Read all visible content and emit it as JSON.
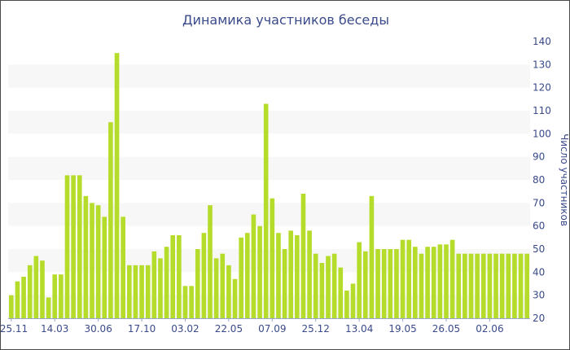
{
  "chart_data": {
    "type": "bar",
    "title": "Динамика участников беседы",
    "ylabel": "Число участников",
    "xlabel": "",
    "ylim": [
      20,
      140
    ],
    "yticks": [
      20,
      30,
      40,
      50,
      60,
      70,
      80,
      90,
      100,
      110,
      120,
      130,
      140
    ],
    "y_axis_side": "right",
    "grid": "alternating horizontal bands",
    "x_tick_labels": [
      {
        "label": "25.11",
        "index": 0
      },
      {
        "label": "14.03",
        "index": 7
      },
      {
        "label": "30.06",
        "index": 14
      },
      {
        "label": "17.10",
        "index": 21
      },
      {
        "label": "03.02",
        "index": 28
      },
      {
        "label": "22.05",
        "index": 35
      },
      {
        "label": "07.09",
        "index": 42
      },
      {
        "label": "25.12",
        "index": 49
      },
      {
        "label": "13.04",
        "index": 56
      },
      {
        "label": "19.05",
        "index": 63
      },
      {
        "label": "26.05",
        "index": 70
      },
      {
        "label": "02.06",
        "index": 77
      }
    ],
    "series": [
      {
        "color": "#b5dc2a",
        "values": [
          30,
          36,
          38,
          43,
          47,
          45,
          29,
          39,
          39,
          82,
          82,
          82,
          73,
          70,
          69,
          64,
          105,
          135,
          64,
          43,
          43,
          43,
          43,
          49,
          46,
          51,
          56,
          56,
          34,
          34,
          50,
          57,
          69,
          46,
          48,
          43,
          37,
          55,
          57,
          65,
          60,
          113,
          72,
          57,
          50,
          58,
          56,
          74,
          58,
          48,
          44,
          47,
          48,
          42,
          32,
          35,
          53,
          49,
          73,
          50,
          50,
          50,
          50,
          54,
          54,
          51,
          48,
          51,
          51,
          52,
          52,
          54,
          48,
          48,
          48,
          48,
          48,
          48,
          48,
          48,
          48,
          48,
          48,
          48
        ]
      }
    ]
  }
}
